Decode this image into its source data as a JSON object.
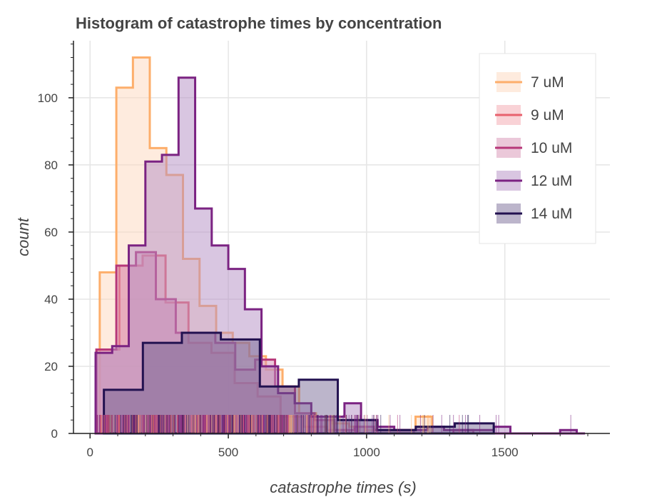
{
  "chart_data": {
    "type": "histogram",
    "title": "Histogram of catastrophe times by concentration",
    "xlabel": "catastrophe times (s)",
    "ylabel": "count",
    "xlim": [
      -60,
      1880
    ],
    "ylim": [
      0,
      117
    ],
    "x_ticks": [
      0,
      500,
      1000,
      1500
    ],
    "y_ticks": [
      0,
      20,
      40,
      60,
      80,
      100
    ],
    "grid": true,
    "legend_position": "top-right",
    "series": [
      {
        "name": "7 uM",
        "color": "#fdae6b",
        "fill": "#fdd8bd",
        "fill_opacity": 0.5,
        "bins": [
          35,
          95,
          155,
          216,
          276,
          336,
          396,
          456,
          516,
          576,
          636,
          696,
          756,
          817,
          877,
          937,
          997,
          1057,
          1117,
          1177,
          1237
        ],
        "counts": [
          48,
          103,
          112,
          85,
          77,
          52,
          38,
          30,
          27,
          23,
          19,
          14,
          6,
          5,
          3,
          2,
          1,
          1,
          1,
          5
        ]
      },
      {
        "name": "9 uM",
        "color": "#e8616d",
        "fill": "#f4a5ae",
        "fill_opacity": 0.5,
        "bins": [
          23,
          106,
          190,
          273,
          356,
          439,
          523,
          606,
          689,
          773,
          856,
          939,
          1022
        ],
        "counts": [
          25,
          50,
          53,
          39,
          27,
          24,
          15,
          11,
          5,
          2,
          1,
          0
        ]
      },
      {
        "name": "10 uM",
        "color": "#b73779",
        "fill": "#d891b4",
        "fill_opacity": 0.5,
        "bins": [
          23,
          95,
          166,
          238,
          310,
          382,
          453,
          525,
          597,
          669,
          741,
          812,
          884,
          956,
          1027,
          1099,
          1171,
          1243,
          1314,
          1386,
          1458
        ],
        "counts": [
          25,
          50,
          54,
          40,
          30,
          30,
          27,
          19,
          22,
          14,
          6,
          4,
          1,
          2,
          1,
          1,
          0,
          0,
          1,
          0
        ]
      },
      {
        "name": "12 uM",
        "color": "#7b2382",
        "fill": "#b38dc4",
        "fill_opacity": 0.5,
        "bins": [
          20,
          80,
          140,
          200,
          260,
          320,
          380,
          440,
          500,
          560,
          620,
          680,
          740,
          800,
          860,
          920,
          980,
          1040,
          1100,
          1160,
          1220,
          1280,
          1340,
          1400,
          1460,
          1520,
          1580,
          1640,
          1700,
          1760,
          1790
        ],
        "counts": [
          24,
          26,
          56,
          81,
          83,
          106,
          67,
          56,
          49,
          37,
          20,
          12,
          9,
          5,
          5,
          9,
          4,
          2,
          1,
          1,
          2,
          1,
          1,
          1,
          2,
          0,
          0,
          0,
          1,
          0
        ]
      },
      {
        "name": "14 uM",
        "color": "#221150",
        "fill": "#6a5a8c",
        "fill_opacity": 0.45,
        "bins": [
          50,
          191,
          332,
          473,
          614,
          755,
          896,
          1037,
          1178,
          1319,
          1460
        ],
        "counts": [
          13,
          27,
          30,
          28,
          14,
          16,
          4,
          1,
          2,
          3
        ]
      }
    ]
  }
}
